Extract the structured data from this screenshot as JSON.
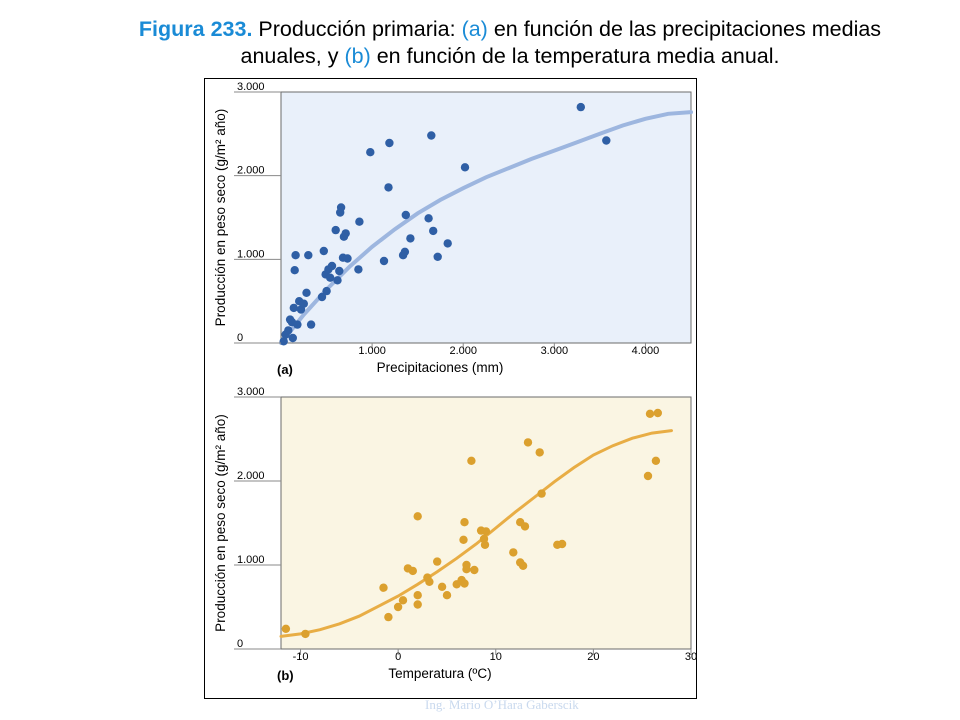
{
  "title": {
    "figure_label": "Figura 233.",
    "part1": " Producción primaria: ",
    "a_ref": "(a)",
    "part2": " en función de las precipitaciones medias anuales, y ",
    "b_ref": "(b)",
    "part3": " en función de la temperatura media anual."
  },
  "credit": "Ing. Mario O’Hara Gaberscik",
  "colors": {
    "title_accent": "#1a8bd6",
    "panel_a_bg": "#e9f0fa",
    "panel_a_points": "#2f5fa5",
    "panel_a_curve": "#9db6df",
    "panel_b_bg": "#faf5e3",
    "panel_b_points": "#dba02e",
    "panel_b_curve": "#e8ad45"
  },
  "chart_data": [
    {
      "type": "scatter",
      "panel_label": "(a)",
      "xlabel": "Precipitaciones (mm)",
      "ylabel": "Producción en peso seco (g/m² año)",
      "xlim": [
        0,
        4500
      ],
      "ylim": [
        0,
        3000
      ],
      "xticks": [
        1000,
        2000,
        3000,
        4000
      ],
      "xtick_labels": [
        "1.000",
        "2.000",
        "3.000",
        "4.000"
      ],
      "yticks": [
        0,
        1000,
        2000,
        3000
      ],
      "ytick_labels": [
        "0",
        "1.000",
        "2.000",
        "3.000"
      ],
      "grid": false,
      "points": [
        [
          30,
          20
        ],
        [
          50,
          100
        ],
        [
          80,
          150
        ],
        [
          100,
          280
        ],
        [
          120,
          250
        ],
        [
          130,
          60
        ],
        [
          140,
          420
        ],
        [
          150,
          870
        ],
        [
          160,
          1050
        ],
        [
          180,
          220
        ],
        [
          200,
          500
        ],
        [
          220,
          400
        ],
        [
          250,
          470
        ],
        [
          280,
          600
        ],
        [
          300,
          1050
        ],
        [
          330,
          220
        ],
        [
          450,
          550
        ],
        [
          470,
          1100
        ],
        [
          490,
          820
        ],
        [
          500,
          620
        ],
        [
          520,
          880
        ],
        [
          540,
          780
        ],
        [
          560,
          920
        ],
        [
          600,
          1350
        ],
        [
          620,
          750
        ],
        [
          640,
          860
        ],
        [
          650,
          1560
        ],
        [
          660,
          1620
        ],
        [
          680,
          1020
        ],
        [
          690,
          1270
        ],
        [
          710,
          1310
        ],
        [
          730,
          1010
        ],
        [
          850,
          880
        ],
        [
          860,
          1450
        ],
        [
          980,
          2280
        ],
        [
          1130,
          980
        ],
        [
          1180,
          1860
        ],
        [
          1190,
          2390
        ],
        [
          1340,
          1050
        ],
        [
          1360,
          1090
        ],
        [
          1370,
          1530
        ],
        [
          1420,
          1250
        ],
        [
          1620,
          1490
        ],
        [
          1650,
          2480
        ],
        [
          1670,
          1340
        ],
        [
          1720,
          1030
        ],
        [
          1830,
          1190
        ],
        [
          2020,
          2100
        ],
        [
          3290,
          2820
        ],
        [
          3570,
          2420
        ]
      ],
      "fit_curve": [
        [
          0,
          0
        ],
        [
          250,
          340
        ],
        [
          500,
          640
        ],
        [
          750,
          910
        ],
        [
          1000,
          1150
        ],
        [
          1250,
          1360
        ],
        [
          1500,
          1550
        ],
        [
          1750,
          1710
        ],
        [
          2000,
          1850
        ],
        [
          2250,
          1980
        ],
        [
          2500,
          2090
        ],
        [
          2750,
          2200
        ],
        [
          3000,
          2300
        ],
        [
          3250,
          2400
        ],
        [
          3500,
          2500
        ],
        [
          3750,
          2600
        ],
        [
          4000,
          2680
        ],
        [
          4250,
          2740
        ],
        [
          4500,
          2760
        ]
      ]
    },
    {
      "type": "scatter",
      "panel_label": "(b)",
      "xlabel": "Temperatura (ºC)",
      "ylabel": "Producción en peso seco (g/m² año)",
      "xlim": [
        -12,
        30
      ],
      "ylim": [
        0,
        3000
      ],
      "xticks": [
        -10,
        0,
        10,
        20,
        30
      ],
      "xtick_labels": [
        "-10",
        "0",
        "10",
        "20",
        "30"
      ],
      "yticks": [
        0,
        1000,
        2000,
        3000
      ],
      "ytick_labels": [
        "0",
        "1.000",
        "2.000",
        "3.000"
      ],
      "grid": false,
      "points": [
        [
          -11.5,
          240
        ],
        [
          -9.5,
          180
        ],
        [
          -1.5,
          730
        ],
        [
          -1,
          380
        ],
        [
          0,
          500
        ],
        [
          0.5,
          580
        ],
        [
          1,
          960
        ],
        [
          1.5,
          930
        ],
        [
          2,
          1580
        ],
        [
          2,
          530
        ],
        [
          2,
          640
        ],
        [
          3,
          850
        ],
        [
          3.2,
          800
        ],
        [
          4,
          1040
        ],
        [
          4.5,
          740
        ],
        [
          5,
          640
        ],
        [
          6,
          770
        ],
        [
          6.5,
          820
        ],
        [
          6.7,
          1300
        ],
        [
          6.8,
          1510
        ],
        [
          6.8,
          780
        ],
        [
          7,
          950
        ],
        [
          7,
          1000
        ],
        [
          7.5,
          2240
        ],
        [
          7.8,
          940
        ],
        [
          8.5,
          1410
        ],
        [
          8.8,
          1310
        ],
        [
          8.9,
          1240
        ],
        [
          9,
          1400
        ],
        [
          11.8,
          1150
        ],
        [
          12.5,
          1030
        ],
        [
          12.5,
          1510
        ],
        [
          12.8,
          990
        ],
        [
          13,
          1460
        ],
        [
          13.3,
          2460
        ],
        [
          14.5,
          2340
        ],
        [
          14.7,
          1850
        ],
        [
          16.3,
          1240
        ],
        [
          16.8,
          1250
        ],
        [
          25.6,
          2060
        ],
        [
          25.8,
          2800
        ],
        [
          26.4,
          2240
        ],
        [
          26.6,
          2810
        ]
      ],
      "fit_curve": [
        [
          -12,
          150
        ],
        [
          -10,
          180
        ],
        [
          -8,
          230
        ],
        [
          -6,
          300
        ],
        [
          -4,
          390
        ],
        [
          -2,
          510
        ],
        [
          0,
          630
        ],
        [
          2,
          770
        ],
        [
          4,
          920
        ],
        [
          6,
          1080
        ],
        [
          8,
          1250
        ],
        [
          10,
          1440
        ],
        [
          12,
          1630
        ],
        [
          14,
          1810
        ],
        [
          16,
          1990
        ],
        [
          18,
          2160
        ],
        [
          20,
          2310
        ],
        [
          22,
          2420
        ],
        [
          24,
          2510
        ],
        [
          26,
          2570
        ],
        [
          28,
          2600
        ]
      ]
    }
  ]
}
